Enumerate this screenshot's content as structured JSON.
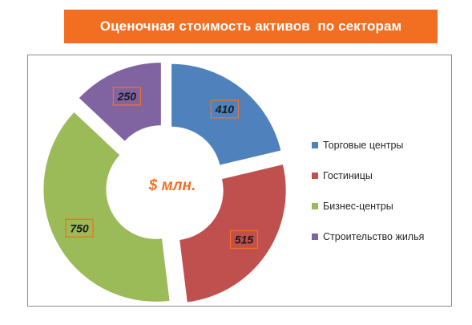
{
  "header": {
    "title": "Оценочная стоимость активов  по секторам",
    "banner_color": "#f26f21"
  },
  "chart_data": {
    "type": "doughnut",
    "title": "Оценочная стоимость активов  по секторам",
    "center_label": "$ млн.",
    "center_label_color": "#f26f21",
    "categories": [
      "Торговые центры",
      "Гостиницы",
      "Бизнес-центры",
      "Строительство жилья"
    ],
    "values": [
      410,
      515,
      750,
      250
    ],
    "data_labels": [
      "410",
      "515",
      "750",
      "250"
    ],
    "colors": [
      "#4f81bd",
      "#c0504d",
      "#9bbb59",
      "#8064a2"
    ],
    "exploded": true,
    "legend_position": "right",
    "data_label_border_color": "#f26f21"
  }
}
